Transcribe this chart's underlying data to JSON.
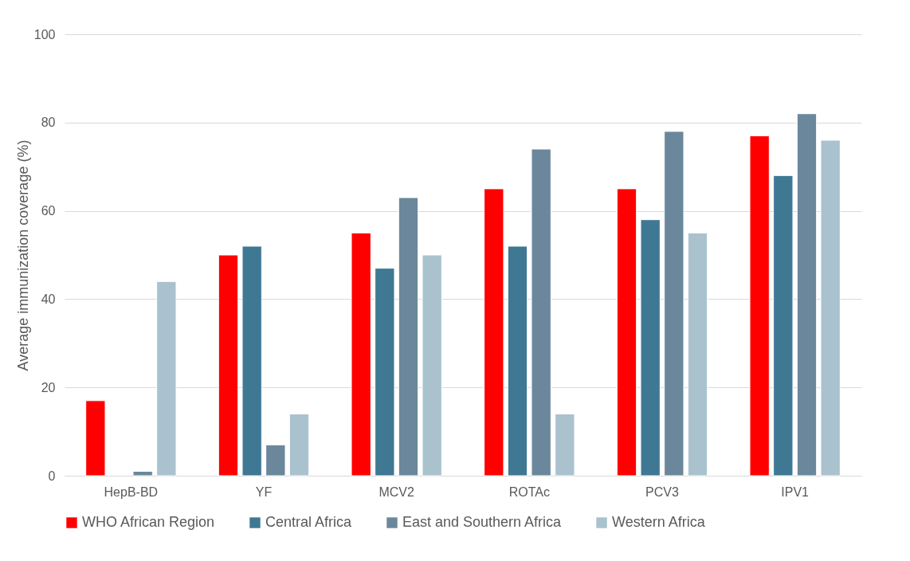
{
  "chart_data": {
    "type": "bar",
    "ylabel": "Average  immunization coverage (%)",
    "categories": [
      "HepB-BD",
      "YF",
      "MCV2",
      "ROTAc",
      "PCV3",
      "IPV1"
    ],
    "series": [
      {
        "name": "WHO African Region",
        "color": "#ff0000",
        "values": [
          17,
          50,
          55,
          65,
          65,
          77
        ]
      },
      {
        "name": "Central Africa",
        "color": "#3f7893",
        "values": [
          null,
          52,
          47,
          52,
          58,
          68
        ]
      },
      {
        "name": "East and Southern Africa",
        "color": "#6b879b",
        "values": [
          1,
          7,
          63,
          74,
          78,
          82
        ]
      },
      {
        "name": "Western Africa",
        "color": "#a9c2ce",
        "values": [
          44,
          14,
          50,
          14,
          55,
          76
        ]
      }
    ],
    "ylim": [
      0,
      100
    ],
    "yticks": [
      0,
      20,
      40,
      60,
      80,
      100
    ],
    "grid": "y",
    "legend": "bottom"
  }
}
